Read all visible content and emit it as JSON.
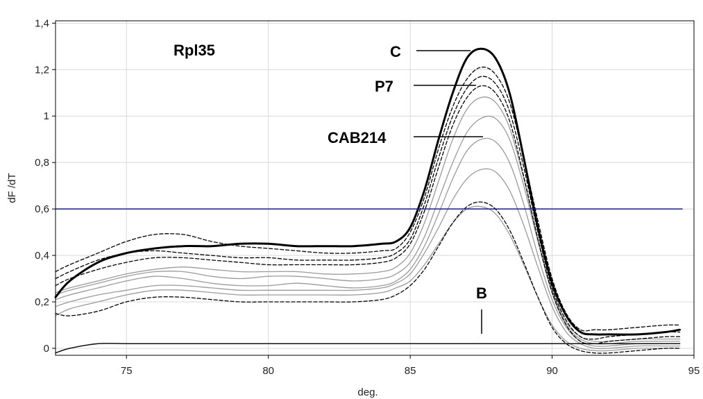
{
  "chart_data": {
    "type": "line",
    "title": "",
    "xlabel": "deg.",
    "ylabel": "dF /dT",
    "xlim": [
      72.5,
      95
    ],
    "ylim": [
      -0.03,
      1.41
    ],
    "x_ticks": [
      75,
      80,
      85,
      90,
      95
    ],
    "x_tick_labels": [
      "75",
      "80",
      "85",
      "90",
      "95"
    ],
    "y_ticks": [
      0,
      0.2,
      0.4,
      0.6,
      0.8,
      1,
      1.2,
      1.4
    ],
    "y_tick_labels": [
      "0",
      "0,2",
      "0,4",
      "0,6",
      "0,8",
      "1",
      "1,2",
      "1,4"
    ],
    "grid": true,
    "threshold": {
      "y": 0.6,
      "color": "#1a1a8c"
    },
    "annotations": [
      {
        "text": "Rpl35"
      },
      {
        "text": "C"
      },
      {
        "text": "P7"
      },
      {
        "text": "CAB214"
      },
      {
        "text": "B"
      }
    ],
    "series": [
      {
        "style": "bold",
        "color": "#000000",
        "x": [
          72.5,
          73,
          74,
          75,
          76,
          77,
          78,
          79,
          80,
          81,
          82,
          83,
          84,
          84.5,
          85,
          85.5,
          86,
          86.5,
          87,
          87.5,
          88,
          88.5,
          89,
          89.5,
          90,
          90.5,
          91,
          91.5,
          92,
          93,
          94,
          94.5
        ],
        "y": [
          0.22,
          0.29,
          0.37,
          0.41,
          0.43,
          0.44,
          0.44,
          0.45,
          0.45,
          0.44,
          0.44,
          0.44,
          0.45,
          0.46,
          0.52,
          0.68,
          0.9,
          1.1,
          1.25,
          1.29,
          1.25,
          1.1,
          0.82,
          0.52,
          0.28,
          0.14,
          0.07,
          0.06,
          0.06,
          0.06,
          0.07,
          0.08
        ]
      },
      {
        "style": "dashed",
        "color": "#000000",
        "x": [
          72.5,
          73,
          74,
          75,
          76,
          77,
          78,
          79,
          80,
          81,
          82,
          83,
          84,
          84.5,
          85,
          85.5,
          86,
          86.5,
          87,
          87.5,
          88,
          88.5,
          89,
          89.5,
          90,
          90.5,
          91,
          91.5,
          92,
          93,
          94,
          94.5
        ],
        "y": [
          0.33,
          0.36,
          0.41,
          0.46,
          0.49,
          0.49,
          0.46,
          0.44,
          0.43,
          0.42,
          0.41,
          0.41,
          0.42,
          0.43,
          0.5,
          0.65,
          0.86,
          1.04,
          1.16,
          1.21,
          1.18,
          1.06,
          0.82,
          0.55,
          0.3,
          0.15,
          0.08,
          0.08,
          0.08,
          0.09,
          0.1,
          0.1
        ]
      },
      {
        "style": "dashed",
        "color": "#000000",
        "x": [
          72.5,
          73,
          74,
          75,
          76,
          77,
          78,
          79,
          80,
          81,
          82,
          83,
          84,
          84.5,
          85,
          85.5,
          86,
          86.5,
          87,
          87.5,
          88,
          88.5,
          89,
          89.5,
          90,
          90.5,
          91,
          91.5,
          92,
          93,
          94,
          94.5
        ],
        "y": [
          0.3,
          0.33,
          0.38,
          0.41,
          0.42,
          0.41,
          0.4,
          0.39,
          0.39,
          0.38,
          0.38,
          0.38,
          0.39,
          0.41,
          0.47,
          0.62,
          0.82,
          1.0,
          1.12,
          1.17,
          1.14,
          1.02,
          0.78,
          0.5,
          0.26,
          0.12,
          0.05,
          0.04,
          0.05,
          0.06,
          0.07,
          0.07
        ]
      },
      {
        "style": "dashed",
        "color": "#000000",
        "x": [
          72.5,
          73,
          74,
          75,
          76,
          77,
          78,
          79,
          80,
          81,
          82,
          83,
          84,
          84.5,
          85,
          85.5,
          86,
          86.5,
          87,
          87.5,
          88,
          88.5,
          89,
          89.5,
          90,
          90.5,
          91,
          91.5,
          92,
          93,
          94,
          94.5
        ],
        "y": [
          0.27,
          0.3,
          0.34,
          0.37,
          0.39,
          0.39,
          0.38,
          0.37,
          0.36,
          0.36,
          0.36,
          0.36,
          0.37,
          0.39,
          0.45,
          0.59,
          0.78,
          0.96,
          1.08,
          1.13,
          1.1,
          0.98,
          0.74,
          0.47,
          0.24,
          0.1,
          0.03,
          0.02,
          0.03,
          0.04,
          0.05,
          0.05
        ]
      },
      {
        "style": "gray",
        "color": "#9a9a9a",
        "x": [
          72.5,
          73,
          74,
          75,
          76,
          77,
          78,
          79,
          80,
          81,
          82,
          83,
          84,
          84.5,
          85,
          85.5,
          86,
          86.5,
          87,
          87.5,
          88,
          88.5,
          89,
          89.5,
          90,
          90.5,
          91,
          91.5,
          92,
          93,
          94,
          94.5
        ],
        "y": [
          0.24,
          0.26,
          0.29,
          0.32,
          0.34,
          0.35,
          0.34,
          0.33,
          0.33,
          0.33,
          0.32,
          0.32,
          0.33,
          0.35,
          0.41,
          0.54,
          0.72,
          0.9,
          1.03,
          1.08,
          1.06,
          0.95,
          0.73,
          0.47,
          0.25,
          0.11,
          0.05,
          0.03,
          0.03,
          0.04,
          0.04,
          0.04
        ]
      },
      {
        "style": "gray",
        "color": "#9a9a9a",
        "x": [
          72.5,
          73,
          74,
          75,
          76,
          77,
          78,
          79,
          80,
          81,
          82,
          83,
          84,
          84.5,
          85,
          85.5,
          86,
          86.5,
          87,
          87.5,
          88,
          88.5,
          89,
          89.5,
          90,
          90.5,
          91,
          91.5,
          92,
          93,
          94,
          94.5
        ],
        "y": [
          0.23,
          0.25,
          0.28,
          0.31,
          0.33,
          0.33,
          0.31,
          0.3,
          0.31,
          0.31,
          0.3,
          0.29,
          0.3,
          0.32,
          0.37,
          0.48,
          0.64,
          0.8,
          0.93,
          0.99,
          0.99,
          0.9,
          0.7,
          0.46,
          0.24,
          0.1,
          0.04,
          0.02,
          0.02,
          0.03,
          0.03,
          0.03
        ]
      },
      {
        "style": "gray",
        "color": "#9a9a9a",
        "x": [
          72.5,
          73,
          74,
          75,
          76,
          77,
          78,
          79,
          80,
          81,
          82,
          83,
          84,
          84.5,
          85,
          85.5,
          86,
          86.5,
          87,
          87.5,
          88,
          88.5,
          89,
          89.5,
          90,
          90.5,
          91,
          91.5,
          92,
          93,
          94,
          94.5
        ],
        "y": [
          0.21,
          0.23,
          0.26,
          0.29,
          0.31,
          0.3,
          0.28,
          0.27,
          0.27,
          0.28,
          0.27,
          0.26,
          0.27,
          0.29,
          0.34,
          0.44,
          0.58,
          0.73,
          0.85,
          0.9,
          0.89,
          0.8,
          0.62,
          0.4,
          0.21,
          0.09,
          0.03,
          0.01,
          0.01,
          0.02,
          0.02,
          0.02
        ]
      },
      {
        "style": "gray",
        "color": "#9a9a9a",
        "x": [
          72.5,
          73,
          74,
          75,
          76,
          77,
          78,
          79,
          80,
          81,
          82,
          83,
          84,
          84.5,
          85,
          85.5,
          86,
          86.5,
          87,
          87.5,
          88,
          88.5,
          89,
          89.5,
          90,
          90.5,
          91,
          91.5,
          92,
          93,
          94,
          94.5
        ],
        "y": [
          0.18,
          0.2,
          0.23,
          0.25,
          0.27,
          0.27,
          0.26,
          0.25,
          0.25,
          0.25,
          0.25,
          0.25,
          0.26,
          0.28,
          0.32,
          0.41,
          0.52,
          0.64,
          0.73,
          0.77,
          0.76,
          0.68,
          0.53,
          0.35,
          0.18,
          0.07,
          0.02,
          0.0,
          0.0,
          0.01,
          0.01,
          0.01
        ]
      },
      {
        "style": "dashed",
        "color": "#000000",
        "x": [
          72.5,
          73,
          74,
          75,
          76,
          77,
          78,
          79,
          80,
          81,
          82,
          83,
          84,
          84.5,
          85,
          85.5,
          86,
          86.5,
          87,
          87.5,
          88,
          88.5,
          89,
          89.5,
          90,
          90.5,
          91,
          91.5,
          92,
          93,
          94,
          94.5
        ],
        "y": [
          0.15,
          0.14,
          0.16,
          0.2,
          0.22,
          0.22,
          0.21,
          0.2,
          0.2,
          0.2,
          0.2,
          0.2,
          0.21,
          0.23,
          0.27,
          0.34,
          0.44,
          0.54,
          0.61,
          0.63,
          0.6,
          0.51,
          0.37,
          0.22,
          0.09,
          0.02,
          -0.01,
          -0.02,
          -0.02,
          -0.01,
          0.0,
          0.0
        ]
      },
      {
        "style": "gray",
        "color": "#9a9a9a",
        "x": [
          72.5,
          73,
          74,
          75,
          76,
          77,
          78,
          79,
          80,
          81,
          82,
          83,
          84,
          84.5,
          85,
          85.5,
          86,
          86.5,
          87,
          87.5,
          88,
          88.5,
          89,
          89.5,
          90,
          90.5,
          91,
          91.5,
          92,
          93,
          94,
          94.5
        ],
        "y": [
          0.14,
          0.17,
          0.2,
          0.23,
          0.25,
          0.25,
          0.24,
          0.23,
          0.23,
          0.23,
          0.23,
          0.23,
          0.24,
          0.26,
          0.29,
          0.36,
          0.45,
          0.54,
          0.6,
          0.61,
          0.58,
          0.49,
          0.36,
          0.22,
          0.1,
          0.03,
          0.0,
          -0.01,
          -0.01,
          0.0,
          0.0,
          0.0
        ]
      },
      {
        "style": "solid",
        "color": "#111111",
        "x": [
          72.5,
          73,
          74,
          75,
          76,
          78,
          80,
          82,
          84,
          86,
          88,
          90,
          91,
          92,
          94,
          94.5
        ],
        "y": [
          -0.02,
          0.0,
          0.02,
          0.02,
          0.02,
          0.02,
          0.02,
          0.02,
          0.02,
          0.02,
          0.02,
          0.02,
          0.02,
          0.02,
          0.02,
          0.02
        ]
      }
    ]
  }
}
